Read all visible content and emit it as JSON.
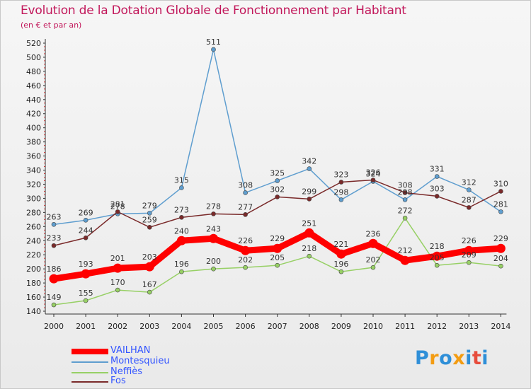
{
  "header": {
    "title": "Evolution de la Dotation Globale de Fonctionnement par Habitant",
    "subtitle": "(en € et par an)"
  },
  "logo": {
    "text": "Proxiti",
    "colors": [
      "#2f8fd8",
      "#f39c12",
      "#2f8fd8",
      "#f39c12",
      "#2f8fd8",
      "#e74c3c",
      "#2f8fd8"
    ]
  },
  "chart_data": {
    "type": "line",
    "title": "Evolution de la Dotation Globale de Fonctionnement par Habitant",
    "subtitle": "(en € et par an)",
    "categories": [
      "2000",
      "2001",
      "2002",
      "2003",
      "2004",
      "2005",
      "2006",
      "2007",
      "2008",
      "2009",
      "2010",
      "2011",
      "2012",
      "2013",
      "2014"
    ],
    "ylim": [
      140,
      520
    ],
    "ytick_step": 20,
    "grid": false,
    "legend_position": "bottom-left",
    "series": [
      {
        "name": "VAILHAN",
        "color": "#ff0000",
        "emphasis": true,
        "values": [
          186,
          193,
          201,
          203,
          240,
          243,
          226,
          229,
          251,
          221,
          236,
          212,
          218,
          226,
          229
        ]
      },
      {
        "name": "Montesquieu",
        "color": "#5f9ecf",
        "emphasis": false,
        "values": [
          263,
          269,
          278,
          279,
          315,
          511,
          308,
          325,
          342,
          298,
          324,
          298,
          331,
          312,
          281
        ]
      },
      {
        "name": "Neffiès",
        "color": "#97d065",
        "emphasis": false,
        "values": [
          149,
          155,
          170,
          167,
          196,
          200,
          202,
          205,
          218,
          196,
          202,
          272,
          205,
          209,
          204
        ]
      },
      {
        "name": "Fos",
        "color": "#7a2a2a",
        "emphasis": false,
        "values": [
          233,
          244,
          281,
          259,
          273,
          278,
          277,
          302,
          299,
          323,
          326,
          308,
          303,
          287,
          310
        ]
      }
    ]
  }
}
